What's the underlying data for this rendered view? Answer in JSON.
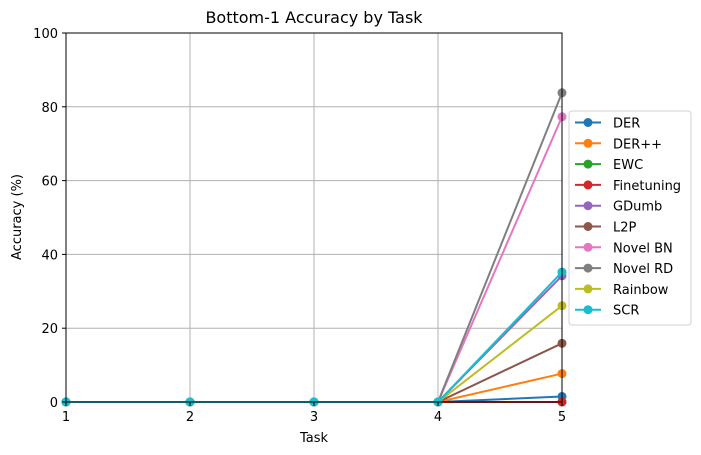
{
  "chart_data": {
    "type": "line",
    "title": "Bottom-1 Accuracy by Task",
    "xlabel": "Task",
    "ylabel": "Accuracy (%)",
    "x": [
      1,
      2,
      3,
      4,
      5
    ],
    "xticks": [
      "1",
      "2",
      "3",
      "4",
      "5"
    ],
    "yticks": [
      "0",
      "20",
      "40",
      "60",
      "80",
      "100"
    ],
    "xlim": [
      1,
      5
    ],
    "ylim": [
      0,
      100
    ],
    "grid": true,
    "legend_position": "right, outside plot",
    "series": [
      {
        "name": "DER",
        "color": "#1f77b4",
        "values": [
          0,
          0,
          0,
          0,
          1.5
        ]
      },
      {
        "name": "DER++",
        "color": "#ff7f0e",
        "values": [
          0,
          0,
          0,
          0,
          7.7
        ]
      },
      {
        "name": "EWC",
        "color": "#2ca02c",
        "values": [
          0,
          0,
          0,
          0,
          0
        ]
      },
      {
        "name": "Finetuning",
        "color": "#d62728",
        "values": [
          0,
          0,
          0,
          0,
          0
        ]
      },
      {
        "name": "GDumb",
        "color": "#9467bd",
        "values": [
          0,
          0,
          0,
          0,
          34.2
        ]
      },
      {
        "name": "L2P",
        "color": "#8c564b",
        "values": [
          0,
          0,
          0,
          0,
          15.9
        ]
      },
      {
        "name": "Novel BN",
        "color": "#e377c2",
        "values": [
          0,
          0,
          0,
          0,
          77.3
        ]
      },
      {
        "name": "Novel RD",
        "color": "#7f7f7f",
        "values": [
          0,
          0,
          0,
          0,
          83.8
        ]
      },
      {
        "name": "Rainbow",
        "color": "#bcbd22",
        "values": [
          0,
          0,
          0,
          0,
          26.1
        ]
      },
      {
        "name": "SCR",
        "color": "#17becf",
        "values": [
          0,
          0,
          0,
          0,
          35.2
        ]
      }
    ]
  }
}
